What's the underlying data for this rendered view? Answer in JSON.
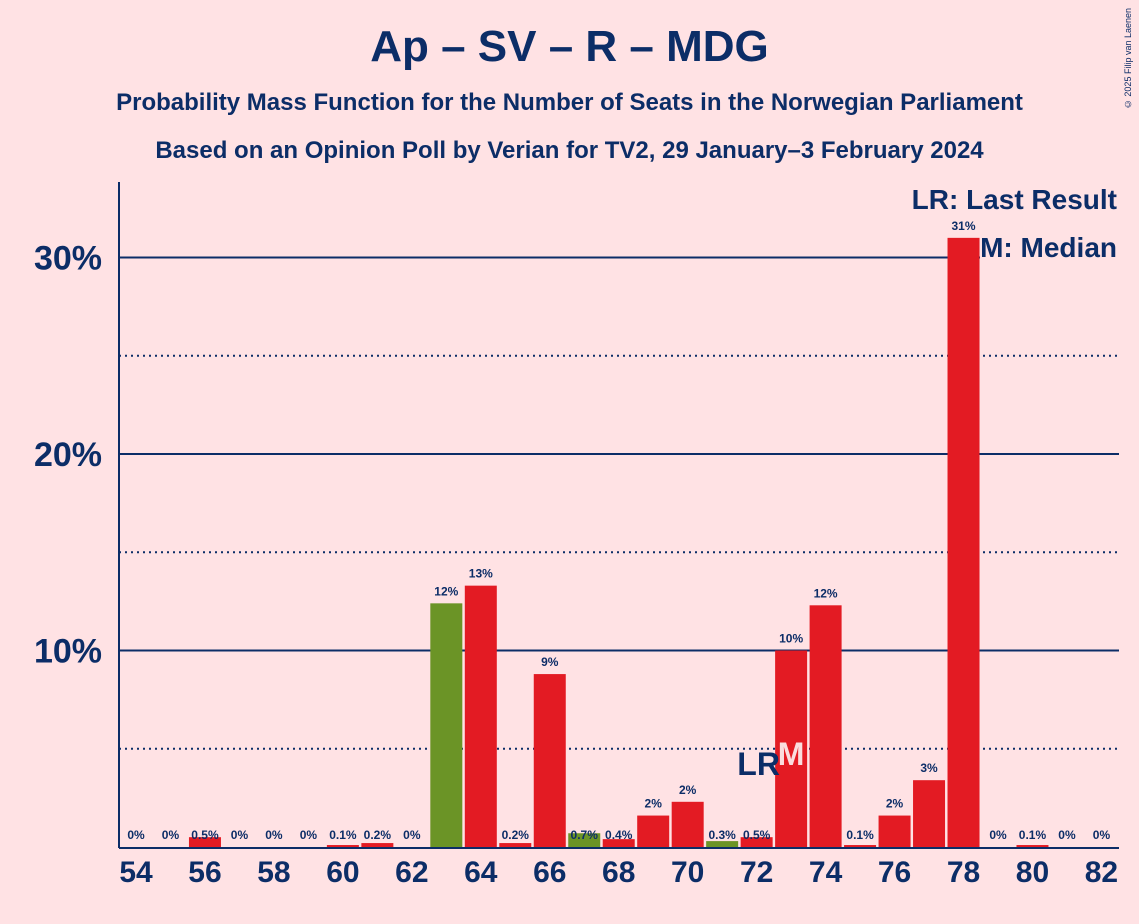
{
  "title": "Ap – SV – R – MDG",
  "subtitle1": "Probability Mass Function for the Number of Seats in the Norwegian Parliament",
  "subtitle2": "Based on an Opinion Poll by Verian for TV2, 29 January–3 February 2024",
  "copyright": "© 2025 Filip van Laenen",
  "legend": {
    "lr": "LR: Last Result",
    "m": "M: Median"
  },
  "markers": {
    "lr_label": "LR",
    "m_label": "M",
    "last_result_seat": 72,
    "median_seat": 73
  },
  "colors": {
    "bar": "#E31B23",
    "highlight": "#6B9426",
    "text": "#0C2D67",
    "background": "#FFE2E4"
  },
  "chart_data": {
    "type": "bar",
    "x": [
      54,
      55,
      56,
      57,
      58,
      59,
      60,
      61,
      62,
      63,
      64,
      65,
      66,
      67,
      68,
      69,
      70,
      71,
      72,
      73,
      74,
      75,
      76,
      77,
      78,
      79,
      80,
      81,
      82
    ],
    "values": [
      0,
      0,
      0.5,
      0,
      0,
      0,
      0.1,
      0.2,
      0,
      12.4,
      13.3,
      0.2,
      8.8,
      0.7,
      0.4,
      1.6,
      2.3,
      0.3,
      0.5,
      10.0,
      12.3,
      0.1,
      1.6,
      3.4,
      31.0,
      0,
      0.1,
      0,
      0
    ],
    "labels": [
      "0%",
      "0%",
      "0.5%",
      "0%",
      "0%",
      "0%",
      "0.1%",
      "0.2%",
      "0%",
      "12%",
      "13%",
      "0.2%",
      "9%",
      "0.7%",
      "0.4%",
      "2%",
      "2%",
      "0.3%",
      "0.5%",
      "10%",
      "12%",
      "0.1%",
      "2%",
      "3%",
      "31%",
      "0%",
      "0.1%",
      "0%",
      "0%"
    ],
    "highlight_seats": [
      63,
      67,
      71
    ],
    "x_ticks": [
      "54",
      "56",
      "58",
      "60",
      "62",
      "64",
      "66",
      "68",
      "70",
      "72",
      "74",
      "76",
      "78",
      "80",
      "82"
    ],
    "y_ticks": [
      "10%",
      "20%",
      "30%"
    ],
    "ylim": [
      0,
      34
    ],
    "ylabel": "",
    "xlabel": "",
    "grid": "solid at 10% steps, dotted at 5% steps"
  }
}
